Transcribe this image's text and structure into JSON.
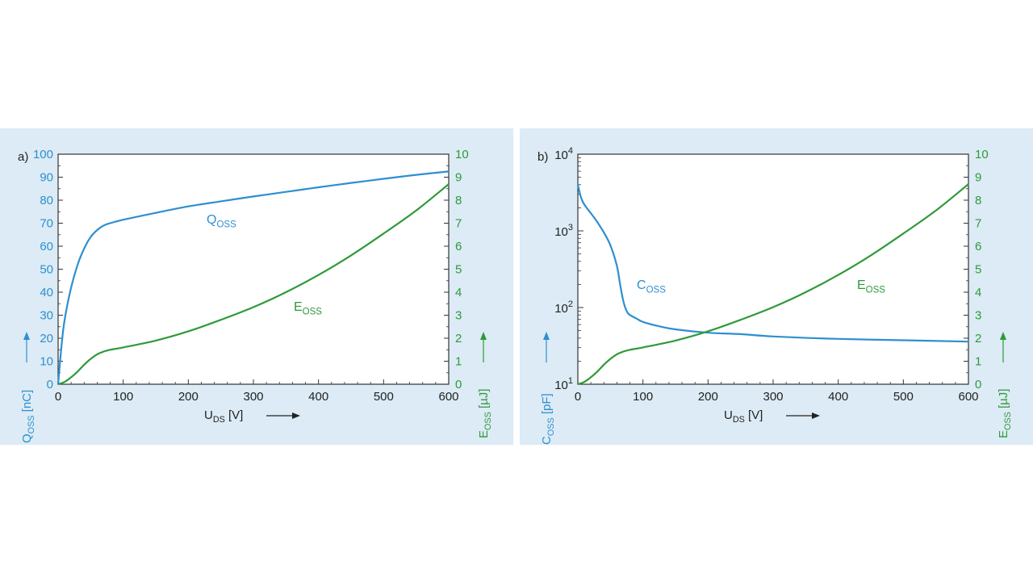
{
  "chart_data": [
    {
      "type": "line",
      "panel_label": "a)",
      "xlabel": {
        "main": "U",
        "sub": "DS",
        "unit": "[V]"
      },
      "x_ticks": [
        0,
        100,
        200,
        300,
        400,
        500,
        600
      ],
      "xlim": [
        0,
        600
      ],
      "y_left": {
        "main": "Q",
        "sub": "OSS",
        "unit": "[nC]",
        "ylim": [
          0,
          100
        ],
        "ticks": [
          0,
          10,
          20,
          30,
          40,
          50,
          60,
          70,
          80,
          90,
          100
        ],
        "color": "#2e8fd0"
      },
      "y_right": {
        "main": "E",
        "sub": "OSS",
        "unit": "[µJ]",
        "ylim": [
          0,
          10
        ],
        "ticks": [
          0,
          1,
          2,
          3,
          4,
          5,
          6,
          7,
          8,
          9,
          10
        ],
        "color": "#2f9a3a"
      },
      "grid": false,
      "series": [
        {
          "name": "Q",
          "name_sub": "OSS",
          "axis": "left",
          "color": "#2e8fd0",
          "x": [
            0,
            5,
            10,
            20,
            30,
            40,
            50,
            60,
            70,
            80,
            100,
            150,
            200,
            250,
            300,
            350,
            400,
            450,
            500,
            550,
            600
          ],
          "y": [
            0,
            16,
            28,
            42,
            52,
            59,
            64,
            67,
            69,
            70,
            71.5,
            74.5,
            77.3,
            79.5,
            81.6,
            83.6,
            85.6,
            87.5,
            89.3,
            91,
            92.5
          ]
        },
        {
          "name": "E",
          "name_sub": "OSS",
          "axis": "right",
          "color": "#2f9a3a",
          "x": [
            0,
            10,
            20,
            30,
            40,
            50,
            60,
            70,
            80,
            100,
            150,
            200,
            250,
            300,
            350,
            400,
            450,
            500,
            550,
            600
          ],
          "y": [
            0,
            0.1,
            0.3,
            0.55,
            0.85,
            1.1,
            1.3,
            1.42,
            1.5,
            1.6,
            1.9,
            2.3,
            2.8,
            3.35,
            4.0,
            4.75,
            5.6,
            6.55,
            7.55,
            8.7
          ]
        }
      ]
    },
    {
      "type": "line",
      "panel_label": "b)",
      "xlabel": {
        "main": "U",
        "sub": "DS",
        "unit": "[V]"
      },
      "x_ticks": [
        0,
        100,
        200,
        300,
        400,
        500,
        600
      ],
      "xlim": [
        0,
        600
      ],
      "y_left": {
        "main": "C",
        "sub": "OSS",
        "unit": "[pF]",
        "scale": "log",
        "ylim": [
          10,
          10000
        ],
        "ticks": [
          {
            "base": "10",
            "exp": "1",
            "value": 10
          },
          {
            "base": "10",
            "exp": "2",
            "value": 100
          },
          {
            "base": "10",
            "exp": "3",
            "value": 1000
          },
          {
            "base": "10",
            "exp": "4",
            "value": 10000
          }
        ],
        "color": "#2e8fd0"
      },
      "y_right": {
        "main": "E",
        "sub": "OSS",
        "unit": "[µJ]",
        "ylim": [
          0,
          10
        ],
        "ticks": [
          0,
          1,
          2,
          3,
          4,
          5,
          6,
          7,
          8,
          9,
          10
        ],
        "color": "#2f9a3a"
      },
      "grid": false,
      "series": [
        {
          "name": "C",
          "name_sub": "OSS",
          "axis": "left",
          "color": "#2e8fd0",
          "x": [
            0,
            5,
            10,
            20,
            30,
            40,
            50,
            60,
            65,
            70,
            75,
            80,
            90,
            100,
            125,
            150,
            200,
            250,
            300,
            400,
            500,
            600
          ],
          "y": [
            4000,
            2700,
            2200,
            1700,
            1300,
            950,
            650,
            350,
            200,
            120,
            90,
            80,
            72,
            65,
            57,
            52,
            47,
            45,
            42,
            39,
            37.5,
            36
          ]
        },
        {
          "name": "E",
          "name_sub": "OSS",
          "axis": "right",
          "color": "#2f9a3a",
          "x": [
            0,
            10,
            20,
            30,
            40,
            50,
            60,
            70,
            80,
            100,
            150,
            200,
            250,
            300,
            350,
            400,
            450,
            500,
            550,
            600
          ],
          "y": [
            0,
            0.1,
            0.3,
            0.55,
            0.85,
            1.1,
            1.3,
            1.42,
            1.5,
            1.6,
            1.9,
            2.3,
            2.8,
            3.35,
            4.0,
            4.75,
            5.6,
            6.55,
            7.55,
            8.7
          ]
        }
      ]
    }
  ]
}
